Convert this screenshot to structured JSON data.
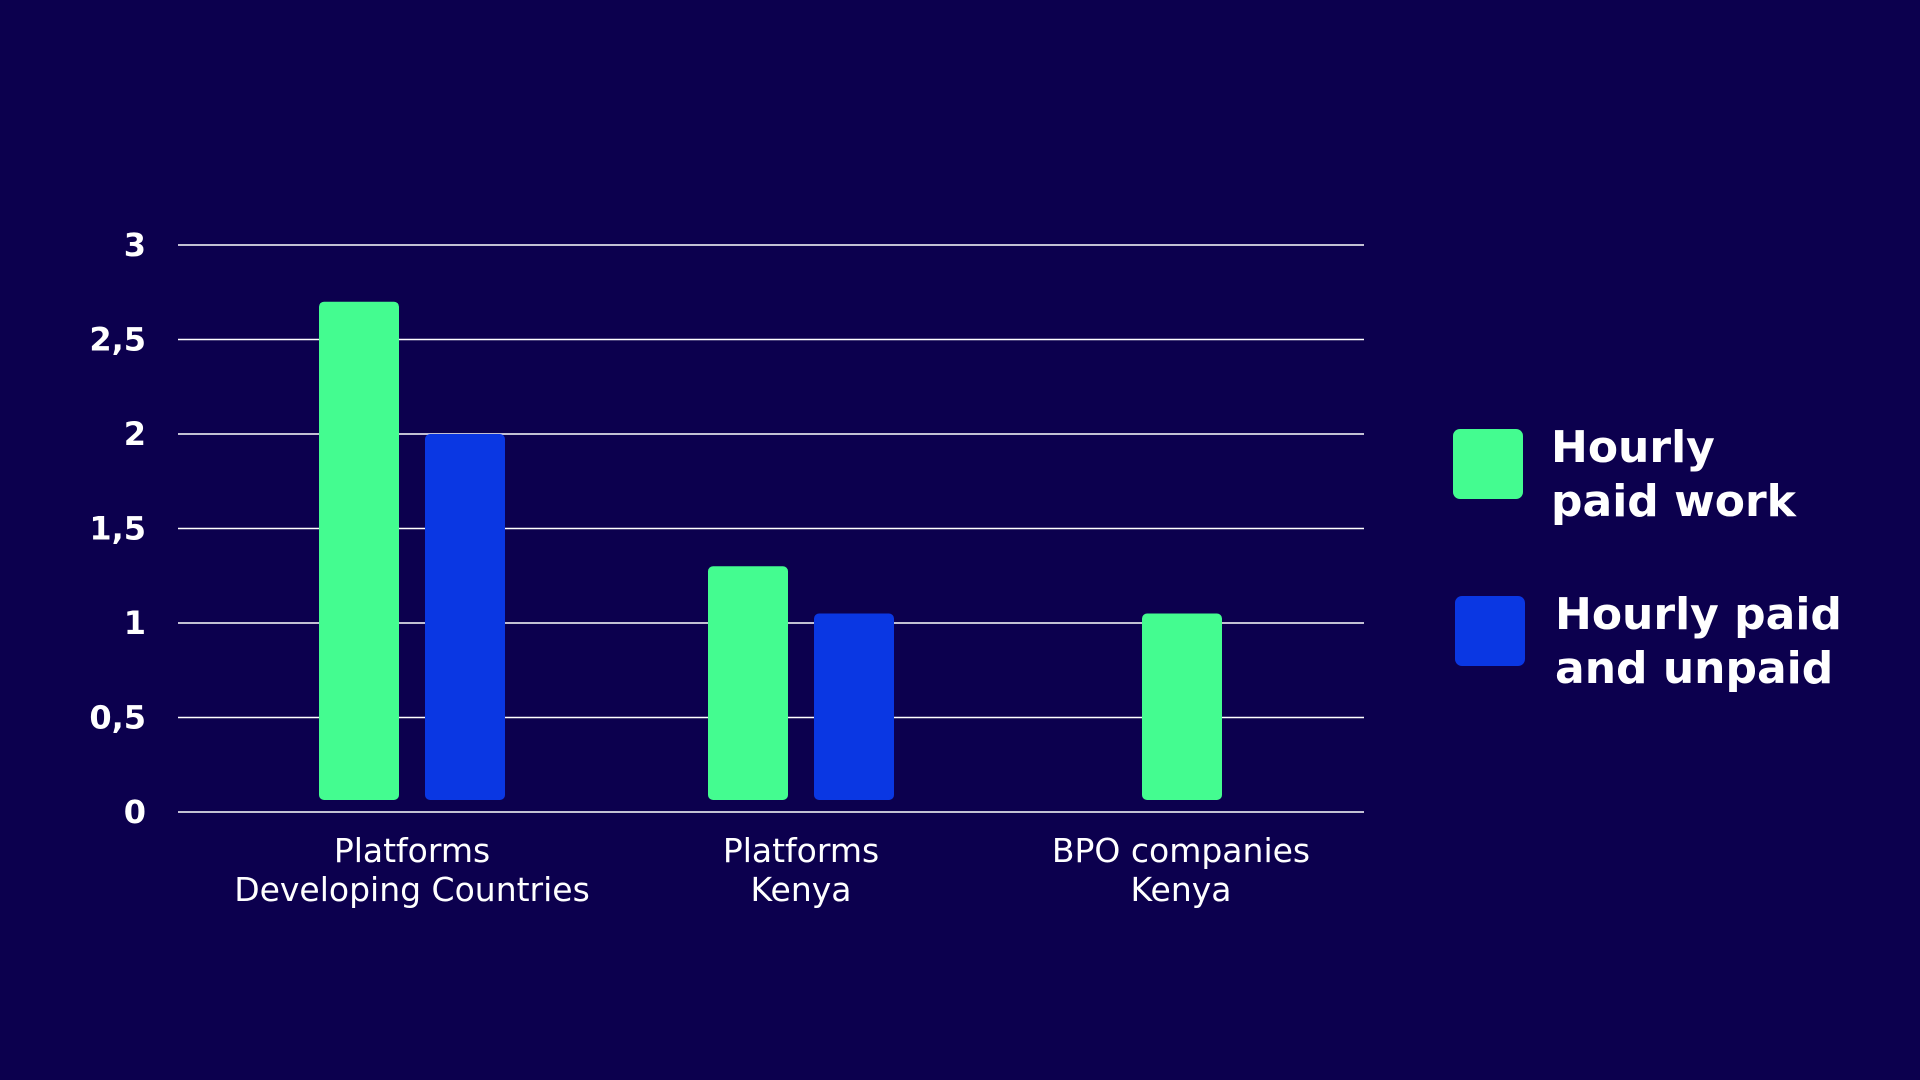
{
  "chart_data": {
    "type": "bar",
    "categories": [
      [
        "Platforms",
        "Developing Countries"
      ],
      [
        "Platforms",
        "Kenya"
      ],
      [
        "BPO companies",
        "Kenya"
      ]
    ],
    "series": [
      {
        "name": [
          "Hourly",
          "paid work"
        ],
        "color": "#44fc90",
        "values": [
          2.7,
          1.3,
          1.05
        ]
      },
      {
        "name": [
          "Hourly paid",
          "and unpaid"
        ],
        "color": "#0a37e3",
        "values": [
          2.0,
          1.05,
          null
        ]
      }
    ],
    "yticks": [
      "0",
      "0,5",
      "1",
      "1,5",
      "2",
      "2,5",
      "3"
    ],
    "ylim": [
      0,
      3
    ],
    "grid": true,
    "legend": "right",
    "colors": {
      "background": "#0c004e",
      "gridline": "#ffffff",
      "text": "#ffffff"
    }
  }
}
